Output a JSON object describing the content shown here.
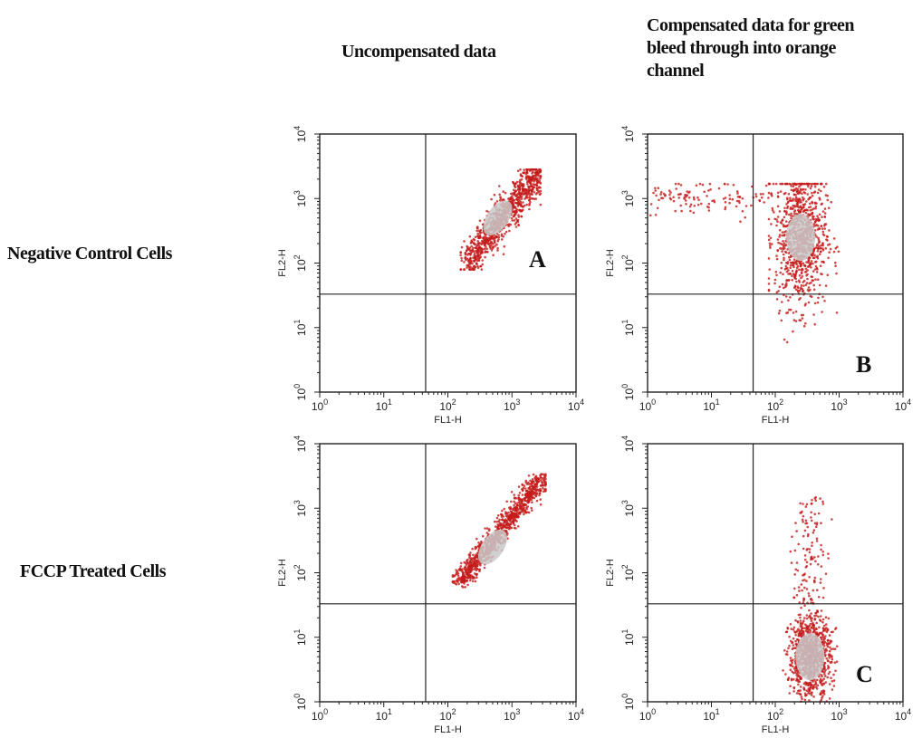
{
  "header": {
    "col_left": "Uncompensated data",
    "col_right_lines": [
      "Compensated data for green",
      "bleed through into orange",
      "channel"
    ]
  },
  "rows": {
    "top": "Negative Control Cells",
    "bottom": "FCCP Treated Cells"
  },
  "colors": {
    "dots": "#c41a1a",
    "dense_core": "#c9c9c9",
    "axis": "#222222"
  },
  "chart_data": [
    {
      "type": "scatter",
      "panel_label": "A",
      "xlabel": "FL1-H",
      "ylabel": "FL2-H",
      "xscale": "log",
      "yscale": "log",
      "xlim": [
        1,
        10000
      ],
      "ylim": [
        1,
        10000
      ],
      "quadrant_x": 45,
      "quadrant_y": 33,
      "clusters": [
        {
          "x_range": [
            200,
            2500
          ],
          "y_range": [
            100,
            2500
          ],
          "shape": "diagonal band",
          "core": [
            600,
            500
          ]
        }
      ]
    },
    {
      "type": "scatter",
      "panel_label": "B",
      "xlabel": "FL1-H",
      "ylabel": "FL2-H",
      "xscale": "log",
      "yscale": "log",
      "xlim": [
        1,
        10000
      ],
      "ylim": [
        1,
        10000
      ],
      "quadrant_x": 45,
      "quadrant_y": 33,
      "clusters": [
        {
          "x_range": [
            100,
            1000
          ],
          "y_range": [
            3,
            1500
          ],
          "shape": "vertical blob",
          "core": [
            250,
            250
          ]
        },
        {
          "x_range": [
            1,
            100
          ],
          "y_range": [
            500,
            1500
          ],
          "shape": "sparse horizontal tail",
          "core": [
            20,
            1000
          ]
        }
      ]
    },
    {
      "type": "scatter",
      "panel_label": "",
      "xlabel": "FL1-H",
      "ylabel": "FL2-H",
      "xscale": "log",
      "yscale": "log",
      "xlim": [
        1,
        10000
      ],
      "ylim": [
        1,
        10000
      ],
      "quadrant_x": 45,
      "quadrant_y": 33,
      "clusters": [
        {
          "x_range": [
            150,
            3000
          ],
          "y_range": [
            70,
            3000
          ],
          "shape": "thin diagonal streak",
          "core": [
            500,
            250
          ]
        }
      ]
    },
    {
      "type": "scatter",
      "panel_label": "C",
      "xlabel": "FL1-H",
      "ylabel": "FL2-H",
      "xscale": "log",
      "yscale": "log",
      "xlim": [
        1,
        10000
      ],
      "ylim": [
        1,
        10000
      ],
      "quadrant_x": 45,
      "quadrant_y": 33,
      "clusters": [
        {
          "x_range": [
            150,
            1000
          ],
          "y_range": [
            1,
            40
          ],
          "shape": "dense blob",
          "core": [
            350,
            5
          ]
        },
        {
          "x_range": [
            200,
            700
          ],
          "y_range": [
            30,
            1500
          ],
          "shape": "sparse vertical streak",
          "core": [
            350,
            100
          ]
        }
      ]
    }
  ]
}
